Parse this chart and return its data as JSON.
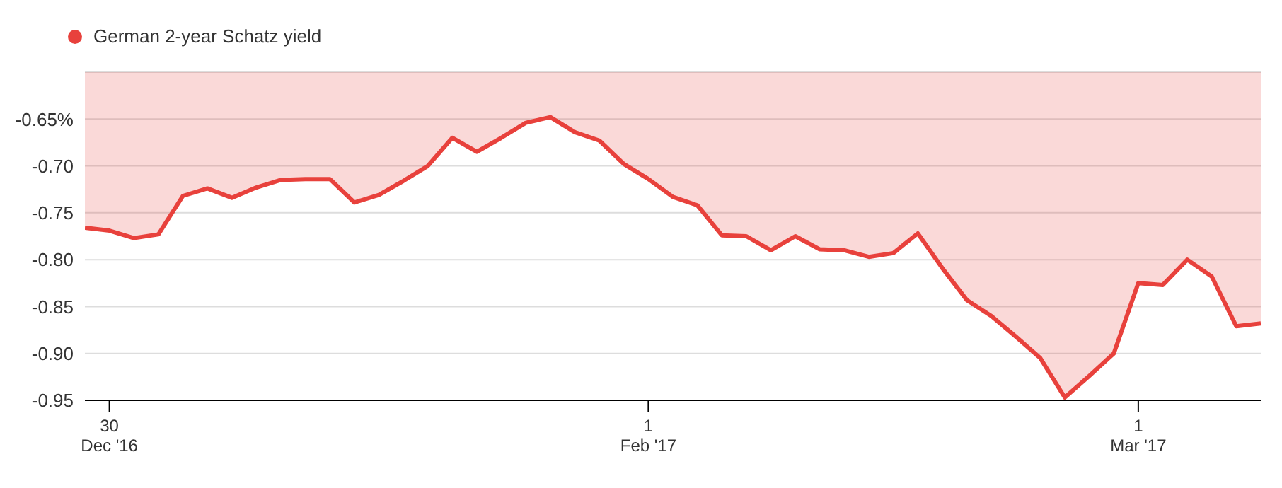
{
  "chart_data": {
    "type": "area",
    "categories": [
      null,
      "30 Dec '16",
      null,
      null,
      null,
      null,
      null,
      null,
      null,
      null,
      null,
      null,
      null,
      null,
      null,
      null,
      null,
      null,
      null,
      null,
      null,
      null,
      null,
      "1 Feb '17",
      null,
      null,
      null,
      null,
      null,
      null,
      null,
      null,
      null,
      null,
      null,
      null,
      null,
      null,
      null,
      null,
      null,
      null,
      null,
      "1 Mar '17",
      null,
      null,
      null,
      null,
      null
    ],
    "series": [
      {
        "name": "German 2-year Schatz yield",
        "color": "#e8413c",
        "values": [
          -0.766,
          -0.769,
          -0.777,
          -0.773,
          -0.732,
          -0.724,
          -0.734,
          -0.723,
          -0.715,
          -0.714,
          -0.714,
          -0.739,
          -0.731,
          -0.716,
          -0.7,
          -0.67,
          -0.685,
          -0.67,
          -0.654,
          -0.648,
          -0.664,
          -0.673,
          -0.698,
          -0.714,
          -0.733,
          -0.742,
          -0.774,
          -0.775,
          -0.79,
          -0.775,
          -0.789,
          -0.79,
          -0.797,
          -0.793,
          -0.772,
          -0.809,
          -0.843,
          -0.86,
          -0.882,
          -0.905,
          -0.947,
          -0.924,
          -0.9,
          -0.825,
          -0.827,
          -0.8,
          -0.818,
          -0.871,
          -0.868
        ]
      }
    ],
    "ylim": [
      -0.95,
      -0.6
    ],
    "yticks": [
      {
        "value": -0.6,
        "label": null
      },
      {
        "value": -0.65,
        "label": "-0.65%"
      },
      {
        "value": -0.7,
        "label": "-0.70"
      },
      -0.75,
      {
        "value": -0.8,
        "label": "-0.80"
      },
      -0.85,
      {
        "value": -0.9,
        "label": "-0.90"
      },
      -0.95
    ],
    "grid": "y",
    "legend": "top left"
  }
}
